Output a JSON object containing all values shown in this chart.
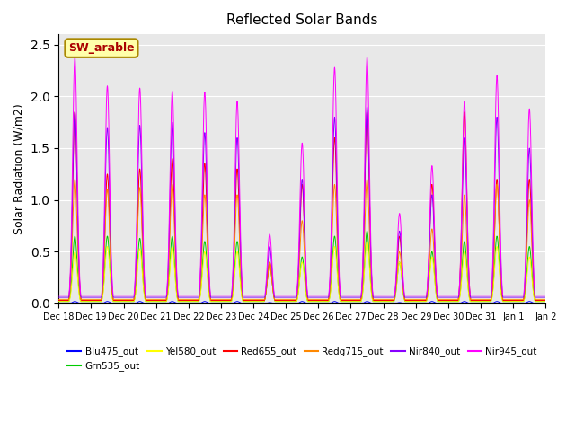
{
  "title": "Reflected Solar Bands",
  "ylabel": "Solar Radiation (W/m2)",
  "ylim": [
    0,
    2.6
  ],
  "background_color": "#e8e8e8",
  "annotation_text": "SW_arable",
  "annotation_bg": "#ffffaa",
  "annotation_border": "#aa8800",
  "annotation_text_color": "#aa0000",
  "series": {
    "Blu475_out": {
      "color": "#0000ff",
      "zorder": 2
    },
    "Grn535_out": {
      "color": "#00cc00",
      "zorder": 3
    },
    "Yel580_out": {
      "color": "#ffff00",
      "zorder": 4
    },
    "Red655_out": {
      "color": "#ff0000",
      "zorder": 5
    },
    "Redg715_out": {
      "color": "#ff8800",
      "zorder": 6
    },
    "Nir840_out": {
      "color": "#8800ff",
      "zorder": 7
    },
    "Nir945_out": {
      "color": "#ff00ff",
      "zorder": 8
    }
  },
  "xtick_labels": [
    "Dec 18",
    "Dec 19",
    "Dec 20",
    "Dec 21",
    "Dec 22",
    "Dec 23",
    "Dec 24",
    "Dec 25",
    "Dec 26",
    "Dec 27",
    "Dec 28",
    "Dec 29",
    "Dec 30",
    "Dec 31",
    "Jan 1",
    "Jan 2"
  ],
  "n_days": 15,
  "samples_per_day": 144,
  "peak_heights": {
    "Nir945_out": [
      2.38,
      2.1,
      2.08,
      2.05,
      2.04,
      1.95,
      0.67,
      1.55,
      2.28,
      2.38,
      0.87,
      1.33,
      1.95,
      2.2,
      1.88
    ],
    "Nir840_out": [
      1.85,
      1.7,
      1.72,
      1.75,
      1.65,
      1.6,
      0.55,
      1.2,
      1.8,
      1.9,
      0.7,
      1.05,
      1.6,
      1.8,
      1.5
    ],
    "Redg715_out": [
      1.2,
      1.1,
      1.12,
      1.15,
      1.05,
      1.05,
      0.4,
      0.8,
      1.15,
      1.2,
      0.5,
      0.72,
      1.05,
      1.15,
      1.0
    ],
    "Red655_out": [
      1.85,
      1.25,
      1.3,
      1.4,
      1.35,
      1.3,
      0.4,
      1.15,
      1.6,
      1.85,
      0.65,
      1.15,
      1.85,
      1.2,
      1.2
    ],
    "Yel580_out": [
      0.5,
      0.55,
      0.53,
      0.55,
      0.5,
      0.5,
      0.38,
      0.4,
      0.55,
      0.6,
      0.4,
      0.45,
      0.5,
      0.55,
      0.45
    ],
    "Grn535_out": [
      0.65,
      0.65,
      0.63,
      0.65,
      0.6,
      0.6,
      0.38,
      0.45,
      0.65,
      0.7,
      0.4,
      0.5,
      0.6,
      0.65,
      0.55
    ],
    "Blu475_out": [
      0.02,
      0.02,
      0.02,
      0.02,
      0.02,
      0.02,
      0.01,
      0.02,
      0.02,
      0.02,
      0.01,
      0.02,
      0.02,
      0.02,
      0.02
    ]
  },
  "baseline": {
    "Nir945_out": 0.08,
    "Nir840_out": 0.06,
    "Redg715_out": 0.04,
    "Red655_out": 0.03,
    "Yel580_out": 0.02,
    "Grn535_out": 0.02,
    "Blu475_out": 0.005
  }
}
